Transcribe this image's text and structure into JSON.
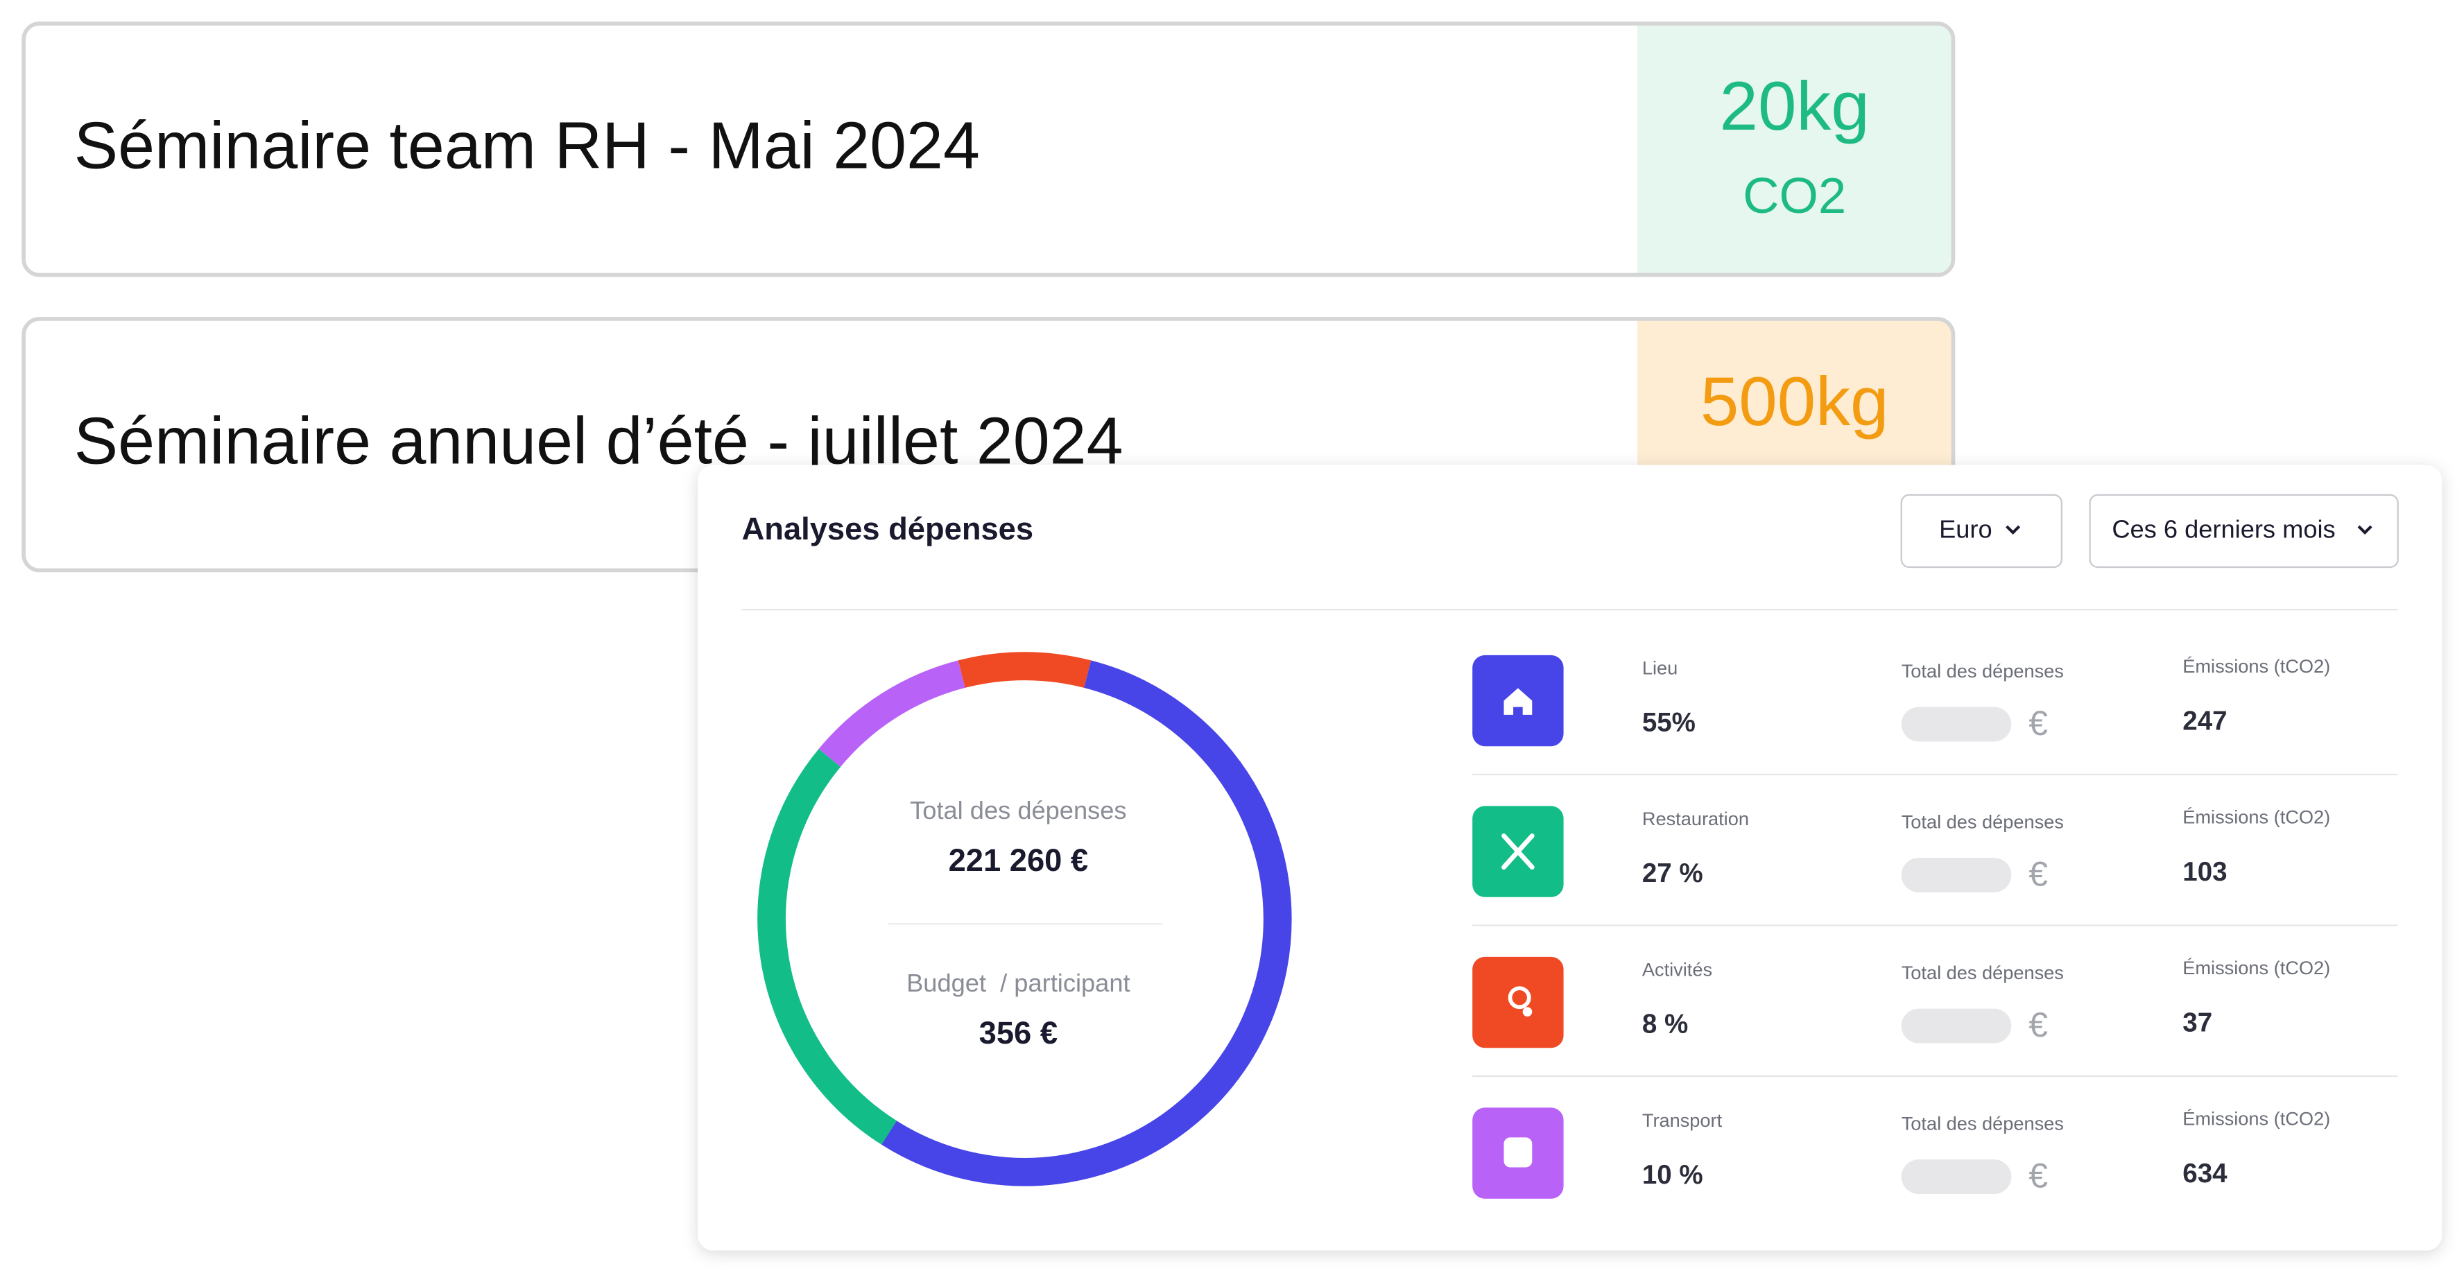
{
  "cards": [
    {
      "title": "Séminaire team RH - Mai 2024",
      "amount": "20kg",
      "unit": "CO2"
    },
    {
      "title": "Séminaire annuel d’été - juillet 2024",
      "amount": "500kg"
    }
  ],
  "panel": {
    "title": "Analyses dépenses",
    "currency_select": "Euro",
    "period_select": "Ces 6 derniers mois",
    "total_label": "Total des dépenses",
    "total_value": "221 260 €",
    "budget_label": "Budget  / participant",
    "budget_value": "356 €",
    "rows": [
      {
        "name": "Lieu",
        "share": {
          "value": 55,
          "label": "55%"
        },
        "spend_label": "Total des dépenses",
        "currency": "€",
        "emissions_label": "Émissions (tCO2)",
        "emissions": 247,
        "color": "#4745e8"
      },
      {
        "name": "Restauration",
        "share": {
          "value": 27,
          "label": "27 %"
        },
        "spend_label": "Total des dépenses",
        "currency": "€",
        "emissions_label": "Émissions (tCO2)",
        "emissions": 103,
        "color": "#12bd87"
      },
      {
        "name": "Activités",
        "share": {
          "value": 8,
          "label": "8 %"
        },
        "spend_label": "Total des dépenses",
        "currency": "€",
        "emissions_label": "Émissions (tCO2)",
        "emissions": 37,
        "color": "#f04a24"
      },
      {
        "name": "Transport",
        "share": {
          "value": 10,
          "label": "10 %"
        },
        "spend_label": "Total des dépenses",
        "currency": "€",
        "emissions_label": "Émissions (tCO2)",
        "emissions": 634,
        "color": "#b862f7"
      }
    ]
  }
}
